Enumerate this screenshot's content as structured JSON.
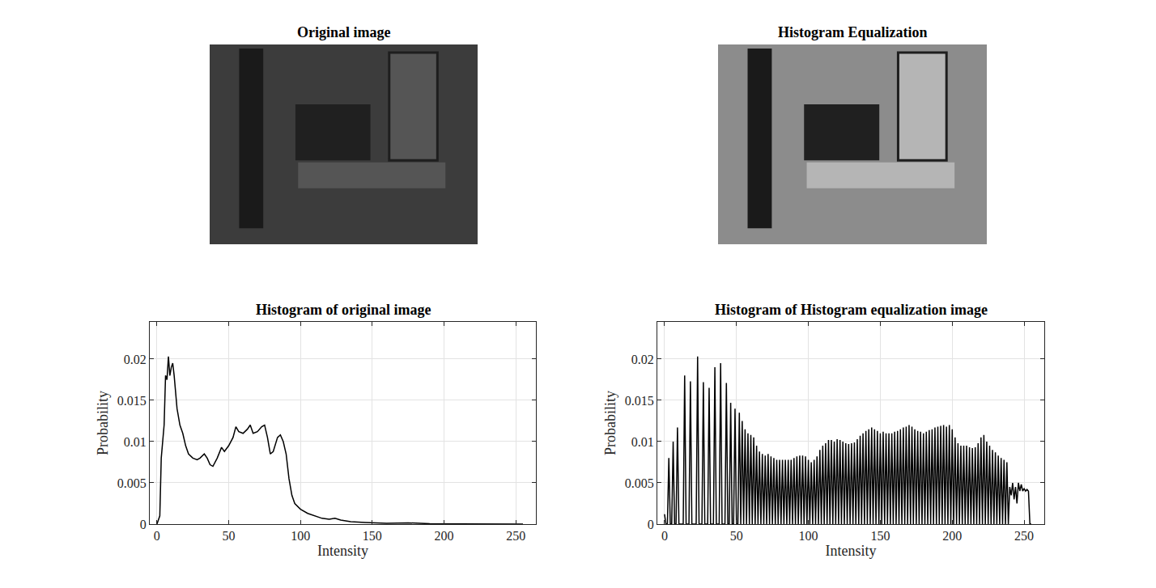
{
  "images": [
    {
      "title": "Original image"
    },
    {
      "title": "Histogram Equalization"
    }
  ],
  "chart_data": [
    {
      "type": "line",
      "title": "Histogram of original image",
      "x_label": "Intensity",
      "y_label": "Probability",
      "color": "#000000",
      "grid": true,
      "xlim": [
        -5,
        264
      ],
      "ylim": [
        0,
        0.0245
      ],
      "xticks": [
        0,
        50,
        100,
        150,
        200,
        250
      ],
      "yticks": [
        0,
        0.005,
        0.01,
        0.015,
        0.02
      ],
      "x": [
        0,
        2,
        3,
        5,
        6,
        7,
        8,
        9,
        10,
        11,
        12,
        14,
        16,
        18,
        20,
        22,
        25,
        28,
        30,
        33,
        35,
        37,
        39,
        42,
        45,
        47,
        50,
        53,
        55,
        57,
        60,
        63,
        65,
        67,
        70,
        73,
        75,
        77,
        79,
        81,
        84,
        86,
        88,
        90,
        92,
        94,
        96,
        100,
        105,
        110,
        115,
        120,
        124,
        128,
        135,
        145,
        160,
        175,
        190,
        210,
        255
      ],
      "values": [
        0,
        0.001,
        0.008,
        0.012,
        0.018,
        0.0175,
        0.0203,
        0.018,
        0.019,
        0.0195,
        0.018,
        0.014,
        0.012,
        0.011,
        0.0095,
        0.0085,
        0.008,
        0.0078,
        0.008,
        0.0085,
        0.008,
        0.0072,
        0.007,
        0.008,
        0.0093,
        0.0088,
        0.0095,
        0.0105,
        0.0118,
        0.0112,
        0.011,
        0.0115,
        0.012,
        0.011,
        0.0112,
        0.0118,
        0.012,
        0.0105,
        0.0085,
        0.0088,
        0.0105,
        0.0108,
        0.01,
        0.0085,
        0.0055,
        0.0035,
        0.0025,
        0.0018,
        0.0013,
        0.001,
        0.0007,
        0.0006,
        0.0007,
        0.0005,
        0.0003,
        0.0002,
        0.0001,
        0.00015,
        5e-05,
        3e-05,
        0
      ]
    },
    {
      "type": "line",
      "title": "Histogram of Histogram equalization image",
      "x_label": "Intensity",
      "y_label": "Probability",
      "color": "#000000",
      "grid": true,
      "xlim": [
        -5,
        264
      ],
      "ylim": [
        0,
        0.0245
      ],
      "xticks": [
        0,
        50,
        100,
        150,
        200,
        250
      ],
      "yticks": [
        0,
        0.005,
        0.01,
        0.015,
        0.02
      ],
      "x": [
        0,
        1,
        2,
        3,
        4,
        5,
        6,
        7,
        8,
        9,
        10,
        13,
        14,
        15,
        17,
        18,
        19,
        22,
        23,
        24,
        26,
        27,
        28,
        30,
        31,
        32,
        34,
        35,
        36,
        38,
        39,
        40,
        42,
        43,
        44,
        45,
        46,
        47,
        48,
        49,
        50,
        51,
        52,
        53,
        54,
        55,
        56,
        57,
        58,
        59,
        60,
        61,
        62,
        63,
        64,
        65,
        66,
        67,
        68,
        69,
        70,
        71,
        72,
        73,
        74,
        75,
        76,
        77,
        78,
        79,
        80,
        81,
        82,
        83,
        84,
        85,
        86,
        87,
        88,
        89,
        90,
        91,
        92,
        93,
        94,
        95,
        96,
        97,
        98,
        99,
        100,
        101,
        102,
        103,
        104,
        105,
        106,
        107,
        108,
        109,
        110,
        111,
        112,
        113,
        114,
        115,
        116,
        117,
        118,
        119,
        120,
        121,
        122,
        123,
        124,
        125,
        126,
        127,
        128,
        129,
        130,
        131,
        132,
        133,
        134,
        135,
        136,
        137,
        138,
        139,
        140,
        141,
        142,
        143,
        144,
        145,
        146,
        147,
        148,
        149,
        150,
        151,
        152,
        153,
        154,
        155,
        156,
        157,
        158,
        159,
        160,
        161,
        162,
        163,
        164,
        165,
        166,
        167,
        168,
        169,
        170,
        171,
        172,
        173,
        174,
        175,
        176,
        177,
        178,
        179,
        180,
        181,
        182,
        183,
        184,
        185,
        186,
        187,
        188,
        189,
        190,
        191,
        192,
        193,
        194,
        195,
        196,
        197,
        198,
        199,
        200,
        201,
        202,
        203,
        204,
        205,
        206,
        207,
        208,
        209,
        210,
        211,
        212,
        213,
        214,
        215,
        216,
        217,
        218,
        219,
        220,
        221,
        222,
        223,
        224,
        225,
        226,
        227,
        228,
        229,
        230,
        231,
        232,
        233,
        234,
        235,
        236,
        237,
        238,
        239,
        240,
        241,
        242,
        243,
        244,
        245,
        246,
        247,
        248,
        249,
        250,
        251,
        252,
        253,
        254,
        255
      ],
      "values": [
        0.0012,
        0,
        0,
        0.008,
        0,
        0,
        0.01,
        0,
        0,
        0.0117,
        0,
        0,
        0.018,
        0,
        0,
        0.0173,
        0,
        0,
        0.0203,
        0,
        0,
        0.0172,
        0,
        0,
        0.0165,
        0,
        0,
        0.019,
        0,
        0,
        0.0195,
        0,
        0,
        0.0171,
        0,
        0,
        0.0147,
        0,
        0,
        0.014,
        0,
        0,
        0.0135,
        0,
        0.0125,
        0,
        0.0115,
        0,
        0.011,
        0,
        0.0108,
        0,
        0.0105,
        0,
        0.0095,
        0,
        0.0088,
        0,
        0.0085,
        0,
        0.0083,
        0,
        0.0085,
        0,
        0.0082,
        0,
        0.008,
        0,
        0.0078,
        0,
        0.0078,
        0,
        0.0078,
        0,
        0.0078,
        0,
        0.0078,
        0,
        0.0078,
        0,
        0.008,
        0,
        0.0082,
        0,
        0.0083,
        0,
        0.0083,
        0,
        0.0082,
        0,
        0.0078,
        0,
        0.0075,
        0,
        0.0078,
        0,
        0.0082,
        0,
        0.009,
        0,
        0.0095,
        0,
        0.0098,
        0,
        0.0102,
        0,
        0.0102,
        0,
        0.01,
        0,
        0.0103,
        0,
        0.0102,
        0,
        0.01,
        0,
        0.0098,
        0,
        0.0097,
        0,
        0.0098,
        0,
        0.0099,
        0,
        0.0103,
        0,
        0.0107,
        0,
        0.011,
        0,
        0.0113,
        0,
        0.0115,
        0,
        0.0117,
        0,
        0.0115,
        0,
        0.0113,
        0,
        0.011,
        0,
        0.0112,
        0,
        0.011,
        0,
        0.011,
        0,
        0.011,
        0,
        0.0112,
        0,
        0.0113,
        0,
        0.0115,
        0,
        0.0117,
        0,
        0.0118,
        0,
        0.012,
        0,
        0.0118,
        0,
        0.0115,
        0,
        0.0113,
        0,
        0.0112,
        0,
        0.011,
        0,
        0.0112,
        0,
        0.0114,
        0,
        0.0115,
        0,
        0.0117,
        0,
        0.0118,
        0,
        0.0119,
        0,
        0.012,
        0,
        0.0118,
        0,
        0.012,
        0,
        0.0115,
        0,
        0.0105,
        0,
        0.0098,
        0,
        0.0095,
        0,
        0.0095,
        0,
        0.0095,
        0,
        0.0093,
        0,
        0.0092,
        0,
        0.0093,
        0,
        0.0098,
        0,
        0.0105,
        0,
        0.0108,
        0,
        0.01,
        0,
        0.0095,
        0,
        0.009,
        0,
        0.0087,
        0,
        0.0083,
        0,
        0.008,
        0,
        0.0078,
        0,
        0.0075,
        0,
        0.0045,
        0.0035,
        0.005,
        0.003,
        0.0045,
        0.0025,
        0.005,
        0.004,
        0.0048,
        0.004,
        0.0043,
        0.004,
        0.0042,
        0.004,
        0,
        0
      ]
    }
  ]
}
